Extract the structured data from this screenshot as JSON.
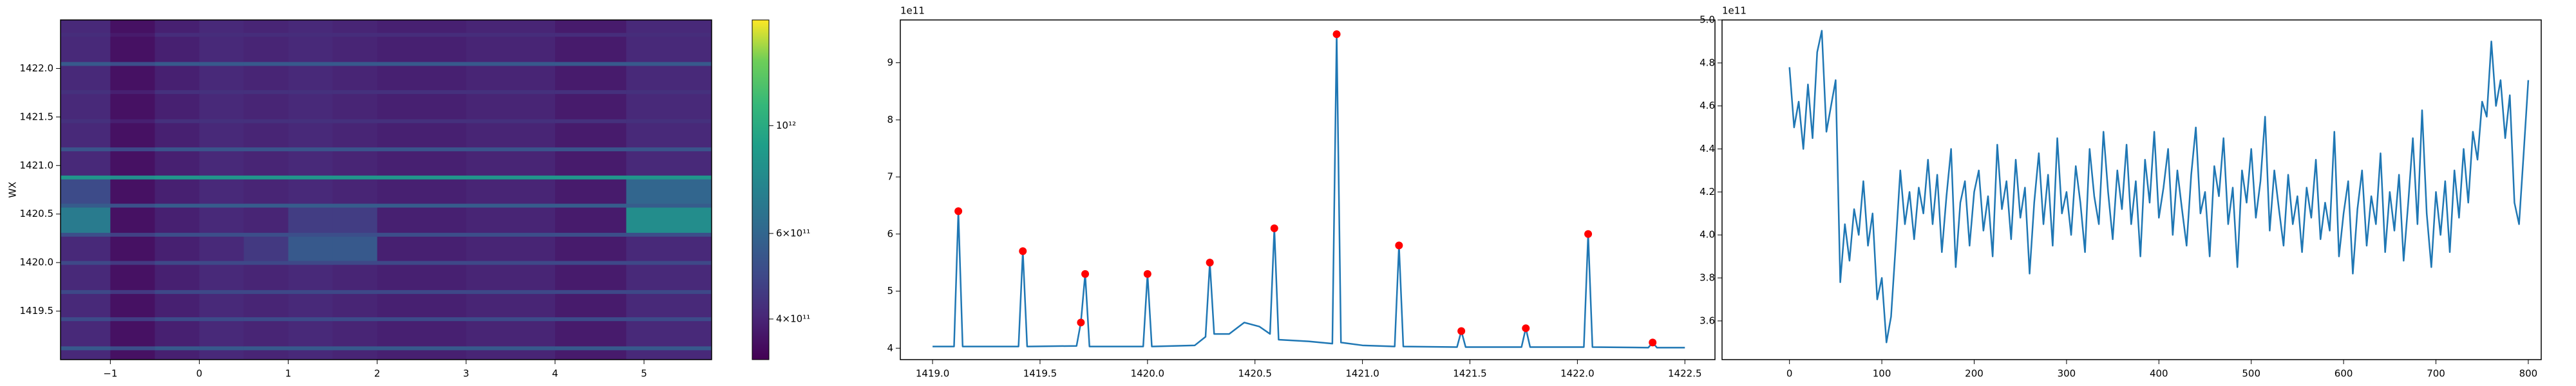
{
  "chart_data": [
    {
      "type": "heatmap",
      "ylabel": "WX",
      "colormap": "viridis",
      "x_edges": [
        -1.56,
        -1.0,
        -0.5,
        0,
        0.5,
        1.0,
        1.5,
        2.0,
        3.0,
        4.0,
        4.8,
        5.76
      ],
      "y_edges": [
        1419.0,
        1419.1,
        1419.14,
        1419.4,
        1419.44,
        1419.68,
        1419.72,
        1419.98,
        1420.02,
        1420.27,
        1420.31,
        1420.57,
        1420.61,
        1420.86,
        1420.9,
        1421.15,
        1421.19,
        1421.44,
        1421.48,
        1421.74,
        1421.78,
        1422.03,
        1422.07,
        1422.33,
        1422.37,
        1422.5
      ],
      "z": [
        [
          410000000000.0,
          360000000000.0,
          390000000000.0,
          410000000000.0,
          400000000000.0,
          410000000000.0,
          400000000000.0,
          390000000000.0,
          400000000000.0,
          380000000000.0,
          410000000000.0
        ],
        [
          550000000000.0,
          510000000000.0,
          550000000000.0,
          550000000000.0,
          550000000000.0,
          550000000000.0,
          550000000000.0,
          550000000000.0,
          550000000000.0,
          550000000000.0,
          550000000000.0
        ],
        [
          410000000000.0,
          360000000000.0,
          390000000000.0,
          410000000000.0,
          400000000000.0,
          410000000000.0,
          400000000000.0,
          390000000000.0,
          400000000000.0,
          380000000000.0,
          410000000000.0
        ],
        [
          500000000000.0,
          460000000000.0,
          500000000000.0,
          500000000000.0,
          500000000000.0,
          500000000000.0,
          500000000000.0,
          500000000000.0,
          500000000000.0,
          500000000000.0,
          500000000000.0
        ],
        [
          410000000000.0,
          360000000000.0,
          390000000000.0,
          410000000000.0,
          400000000000.0,
          410000000000.0,
          400000000000.0,
          390000000000.0,
          400000000000.0,
          380000000000.0,
          410000000000.0
        ],
        [
          490000000000.0,
          450000000000.0,
          490000000000.0,
          490000000000.0,
          490000000000.0,
          490000000000.0,
          490000000000.0,
          490000000000.0,
          490000000000.0,
          490000000000.0,
          490000000000.0
        ],
        [
          410000000000.0,
          360000000000.0,
          390000000000.0,
          410000000000.0,
          400000000000.0,
          410000000000.0,
          400000000000.0,
          390000000000.0,
          400000000000.0,
          380000000000.0,
          410000000000.0
        ],
        [
          490000000000.0,
          450000000000.0,
          490000000000.0,
          490000000000.0,
          490000000000.0,
          490000000000.0,
          490000000000.0,
          490000000000.0,
          490000000000.0,
          490000000000.0,
          490000000000.0
        ],
        [
          410000000000.0,
          360000000000.0,
          390000000000.0,
          410000000000.0,
          450000000000.0,
          550000000000.0,
          550000000000.0,
          390000000000.0,
          400000000000.0,
          380000000000.0,
          410000000000.0
        ],
        [
          510000000000.0,
          470000000000.0,
          510000000000.0,
          510000000000.0,
          510000000000.0,
          510000000000.0,
          510000000000.0,
          510000000000.0,
          510000000000.0,
          510000000000.0,
          510000000000.0
        ],
        [
          700000000000.0,
          360000000000.0,
          390000000000.0,
          410000000000.0,
          400000000000.0,
          460000000000.0,
          460000000000.0,
          390000000000.0,
          400000000000.0,
          380000000000.0,
          800000000000.0
        ],
        [
          560000000000.0,
          520000000000.0,
          560000000000.0,
          560000000000.0,
          560000000000.0,
          560000000000.0,
          560000000000.0,
          560000000000.0,
          560000000000.0,
          560000000000.0,
          560000000000.0
        ],
        [
          500000000000.0,
          360000000000.0,
          390000000000.0,
          410000000000.0,
          400000000000.0,
          410000000000.0,
          400000000000.0,
          390000000000.0,
          400000000000.0,
          380000000000.0,
          600000000000.0
        ],
        [
          850000000000.0,
          810000000000.0,
          850000000000.0,
          850000000000.0,
          850000000000.0,
          850000000000.0,
          850000000000.0,
          850000000000.0,
          850000000000.0,
          850000000000.0,
          850000000000.0
        ],
        [
          410000000000.0,
          360000000000.0,
          390000000000.0,
          410000000000.0,
          400000000000.0,
          410000000000.0,
          400000000000.0,
          390000000000.0,
          400000000000.0,
          380000000000.0,
          410000000000.0
        ],
        [
          530000000000.0,
          490000000000.0,
          530000000000.0,
          530000000000.0,
          530000000000.0,
          530000000000.0,
          530000000000.0,
          530000000000.0,
          530000000000.0,
          530000000000.0,
          530000000000.0
        ],
        [
          410000000000.0,
          360000000000.0,
          390000000000.0,
          410000000000.0,
          400000000000.0,
          410000000000.0,
          400000000000.0,
          390000000000.0,
          400000000000.0,
          380000000000.0,
          410000000000.0
        ],
        [
          430000000000.0,
          390000000000.0,
          430000000000.0,
          430000000000.0,
          430000000000.0,
          430000000000.0,
          430000000000.0,
          430000000000.0,
          430000000000.0,
          430000000000.0,
          430000000000.0
        ],
        [
          410000000000.0,
          360000000000.0,
          390000000000.0,
          410000000000.0,
          400000000000.0,
          410000000000.0,
          400000000000.0,
          390000000000.0,
          400000000000.0,
          380000000000.0,
          410000000000.0
        ],
        [
          430000000000.0,
          390000000000.0,
          430000000000.0,
          430000000000.0,
          430000000000.0,
          430000000000.0,
          430000000000.0,
          430000000000.0,
          430000000000.0,
          430000000000.0,
          430000000000.0
        ],
        [
          410000000000.0,
          360000000000.0,
          390000000000.0,
          410000000000.0,
          400000000000.0,
          410000000000.0,
          400000000000.0,
          390000000000.0,
          400000000000.0,
          380000000000.0,
          410000000000.0
        ],
        [
          550000000000.0,
          510000000000.0,
          550000000000.0,
          550000000000.0,
          550000000000.0,
          550000000000.0,
          550000000000.0,
          550000000000.0,
          550000000000.0,
          550000000000.0,
          550000000000.0
        ],
        [
          410000000000.0,
          360000000000.0,
          390000000000.0,
          410000000000.0,
          400000000000.0,
          410000000000.0,
          400000000000.0,
          390000000000.0,
          400000000000.0,
          380000000000.0,
          410000000000.0
        ],
        [
          420000000000.0,
          380000000000.0,
          420000000000.0,
          420000000000.0,
          420000000000.0,
          420000000000.0,
          420000000000.0,
          420000000000.0,
          420000000000.0,
          420000000000.0,
          420000000000.0
        ],
        [
          410000000000.0,
          360000000000.0,
          390000000000.0,
          410000000000.0,
          400000000000.0,
          410000000000.0,
          400000000000.0,
          390000000000.0,
          400000000000.0,
          380000000000.0,
          410000000000.0
        ]
      ],
      "xlim": [
        -1.56,
        5.76
      ],
      "xticks": [
        {
          "value": -1,
          "label": "−1"
        },
        0,
        1,
        2,
        3,
        4,
        5
      ],
      "ylim": [
        1419.0,
        1422.5
      ],
      "yticks": [
        {
          "value": 1419.5,
          "label": "1419.5"
        },
        {
          "value": 1420,
          "label": "1420.0"
        },
        1420.5,
        {
          "value": 1421,
          "label": "1421.0"
        },
        1421.5,
        {
          "value": 1422,
          "label": "1422.0"
        }
      ],
      "clim": [
        330000000000.0,
        1650000000000.0
      ],
      "cscale": "log",
      "cticks": [
        {
          "value": 400000000000.0,
          "label": "4×10¹¹"
        },
        {
          "value": 600000000000.0,
          "label": "6×10¹¹"
        },
        {
          "value": 1000000000000.0,
          "label": "10¹²"
        }
      ]
    },
    {
      "type": "line",
      "y_offset_label": "1e11",
      "x": [
        1419.0,
        1419.1,
        1419.12,
        1419.14,
        1419.4,
        1419.42,
        1419.44,
        1419.67,
        1419.69,
        1419.71,
        1419.73,
        1419.98,
        1420.0,
        1420.02,
        1420.22,
        1420.27,
        1420.29,
        1420.31,
        1420.38,
        1420.45,
        1420.52,
        1420.57,
        1420.59,
        1420.61,
        1420.75,
        1420.86,
        1420.88,
        1420.9,
        1421.0,
        1421.15,
        1421.17,
        1421.19,
        1421.44,
        1421.46,
        1421.48,
        1421.74,
        1421.76,
        1421.78,
        1422.03,
        1422.05,
        1422.07,
        1422.33,
        1422.35,
        1422.37,
        1422.5
      ],
      "series": [
        {
          "color": "#1f77b4",
          "values": [
            4.03,
            4.03,
            6.4,
            4.03,
            4.03,
            5.7,
            4.03,
            4.04,
            4.45,
            5.3,
            4.03,
            4.03,
            5.3,
            4.03,
            4.05,
            4.2,
            5.5,
            4.25,
            4.25,
            4.45,
            4.38,
            4.25,
            6.1,
            4.15,
            4.12,
            4.08,
            9.5,
            4.1,
            4.05,
            4.03,
            5.8,
            4.03,
            4.02,
            4.3,
            4.02,
            4.02,
            4.35,
            4.02,
            4.02,
            6.0,
            4.02,
            4.01,
            4.1,
            4.01,
            4.01
          ]
        }
      ],
      "markers": {
        "color": "#ff0000",
        "x": [
          1419.12,
          1419.42,
          1419.69,
          1419.71,
          1420.0,
          1420.29,
          1420.59,
          1420.88,
          1421.17,
          1421.46,
          1421.76,
          1422.05,
          1422.35
        ],
        "values": [
          6.4,
          5.7,
          4.45,
          5.3,
          5.3,
          5.5,
          6.1,
          9.5,
          5.8,
          4.3,
          4.35,
          6.0,
          4.1
        ]
      },
      "xlim": [
        1418.85,
        1422.64
      ],
      "xticks": [
        {
          "value": 1419,
          "label": "1419.0"
        },
        1419.5,
        {
          "value": 1420,
          "label": "1420.0"
        },
        1420.5,
        {
          "value": 1421,
          "label": "1421.0"
        },
        1421.5,
        {
          "value": 1422,
          "label": "1422.0"
        },
        1422.5
      ],
      "ylim": [
        3.8,
        9.75
      ],
      "yticks": [
        4,
        5,
        6,
        7,
        8,
        9
      ]
    },
    {
      "type": "line",
      "y_offset_label": "1e11",
      "x": [
        0,
        5,
        10,
        15,
        20,
        25,
        30,
        35,
        40,
        45,
        50,
        55,
        60,
        65,
        70,
        75,
        80,
        85,
        90,
        95,
        100,
        105,
        110,
        115,
        120,
        125,
        130,
        135,
        140,
        145,
        150,
        155,
        160,
        165,
        170,
        175,
        180,
        185,
        190,
        195,
        200,
        205,
        210,
        215,
        220,
        225,
        230,
        235,
        240,
        245,
        250,
        255,
        260,
        265,
        270,
        275,
        280,
        285,
        290,
        295,
        300,
        305,
        310,
        315,
        320,
        325,
        330,
        335,
        340,
        345,
        350,
        355,
        360,
        365,
        370,
        375,
        380,
        385,
        390,
        395,
        400,
        405,
        410,
        415,
        420,
        425,
        430,
        435,
        440,
        445,
        450,
        455,
        460,
        465,
        470,
        475,
        480,
        485,
        490,
        495,
        500,
        505,
        510,
        515,
        520,
        525,
        530,
        535,
        540,
        545,
        550,
        555,
        560,
        565,
        570,
        575,
        580,
        585,
        590,
        595,
        600,
        605,
        610,
        615,
        620,
        625,
        630,
        635,
        640,
        645,
        650,
        655,
        660,
        665,
        670,
        675,
        680,
        685,
        690,
        695,
        700,
        705,
        710,
        715,
        720,
        725,
        730,
        735,
        740,
        745,
        750,
        755,
        760,
        765,
        770,
        775,
        780,
        785,
        790,
        795,
        800
      ],
      "series": [
        {
          "color": "#1f77b4",
          "values": [
            4.78,
            4.5,
            4.62,
            4.4,
            4.7,
            4.45,
            4.85,
            4.95,
            4.48,
            4.6,
            4.72,
            3.78,
            4.05,
            3.88,
            4.12,
            4.0,
            4.25,
            3.95,
            4.1,
            3.7,
            3.8,
            3.5,
            3.62,
            3.95,
            4.3,
            4.05,
            4.2,
            3.98,
            4.22,
            4.1,
            4.35,
            4.05,
            4.28,
            3.92,
            4.18,
            4.4,
            3.85,
            4.15,
            4.25,
            3.95,
            4.2,
            4.3,
            4.02,
            4.18,
            3.9,
            4.42,
            4.12,
            4.25,
            3.98,
            4.35,
            4.08,
            4.22,
            3.82,
            4.15,
            4.38,
            4.05,
            4.28,
            3.95,
            4.45,
            4.1,
            4.2,
            4.0,
            4.32,
            4.15,
            3.92,
            4.4,
            4.18,
            4.05,
            4.48,
            4.2,
            3.98,
            4.3,
            4.12,
            4.42,
            4.05,
            4.25,
            3.9,
            4.35,
            4.15,
            4.48,
            4.08,
            4.22,
            4.4,
            4.0,
            4.3,
            4.12,
            3.95,
            4.28,
            4.5,
            4.1,
            4.2,
            3.9,
            4.32,
            4.18,
            4.45,
            4.05,
            4.22,
            3.85,
            4.3,
            4.15,
            4.4,
            4.08,
            4.25,
            4.55,
            4.02,
            4.3,
            4.12,
            3.95,
            4.28,
            4.05,
            4.18,
            3.92,
            4.22,
            4.08,
            4.35,
            3.98,
            4.15,
            4.02,
            4.48,
            3.9,
            4.1,
            4.25,
            3.82,
            4.12,
            4.3,
            3.95,
            4.18,
            4.05,
            4.38,
            3.92,
            4.2,
            4.02,
            4.28,
            3.88,
            4.15,
            4.45,
            4.05,
            4.58,
            4.1,
            3.85,
            4.2,
            4.0,
            4.25,
            3.92,
            4.3,
            4.08,
            4.4,
            4.15,
            4.48,
            4.35,
            4.62,
            4.55,
            4.9,
            4.6,
            4.72,
            4.45,
            4.65,
            4.15,
            4.05,
            4.38,
            4.72
          ]
        }
      ],
      "xlim": [
        -73,
        814
      ],
      "xticks": [
        0,
        100,
        200,
        300,
        400,
        500,
        600,
        700,
        800
      ],
      "ylim": [
        3.42,
        5.0
      ],
      "yticks": [
        3.6,
        3.8,
        {
          "value": 4,
          "label": "4.0"
        },
        4.2,
        4.4,
        4.6,
        4.8,
        {
          "value": 5,
          "label": "5.0"
        }
      ]
    }
  ]
}
